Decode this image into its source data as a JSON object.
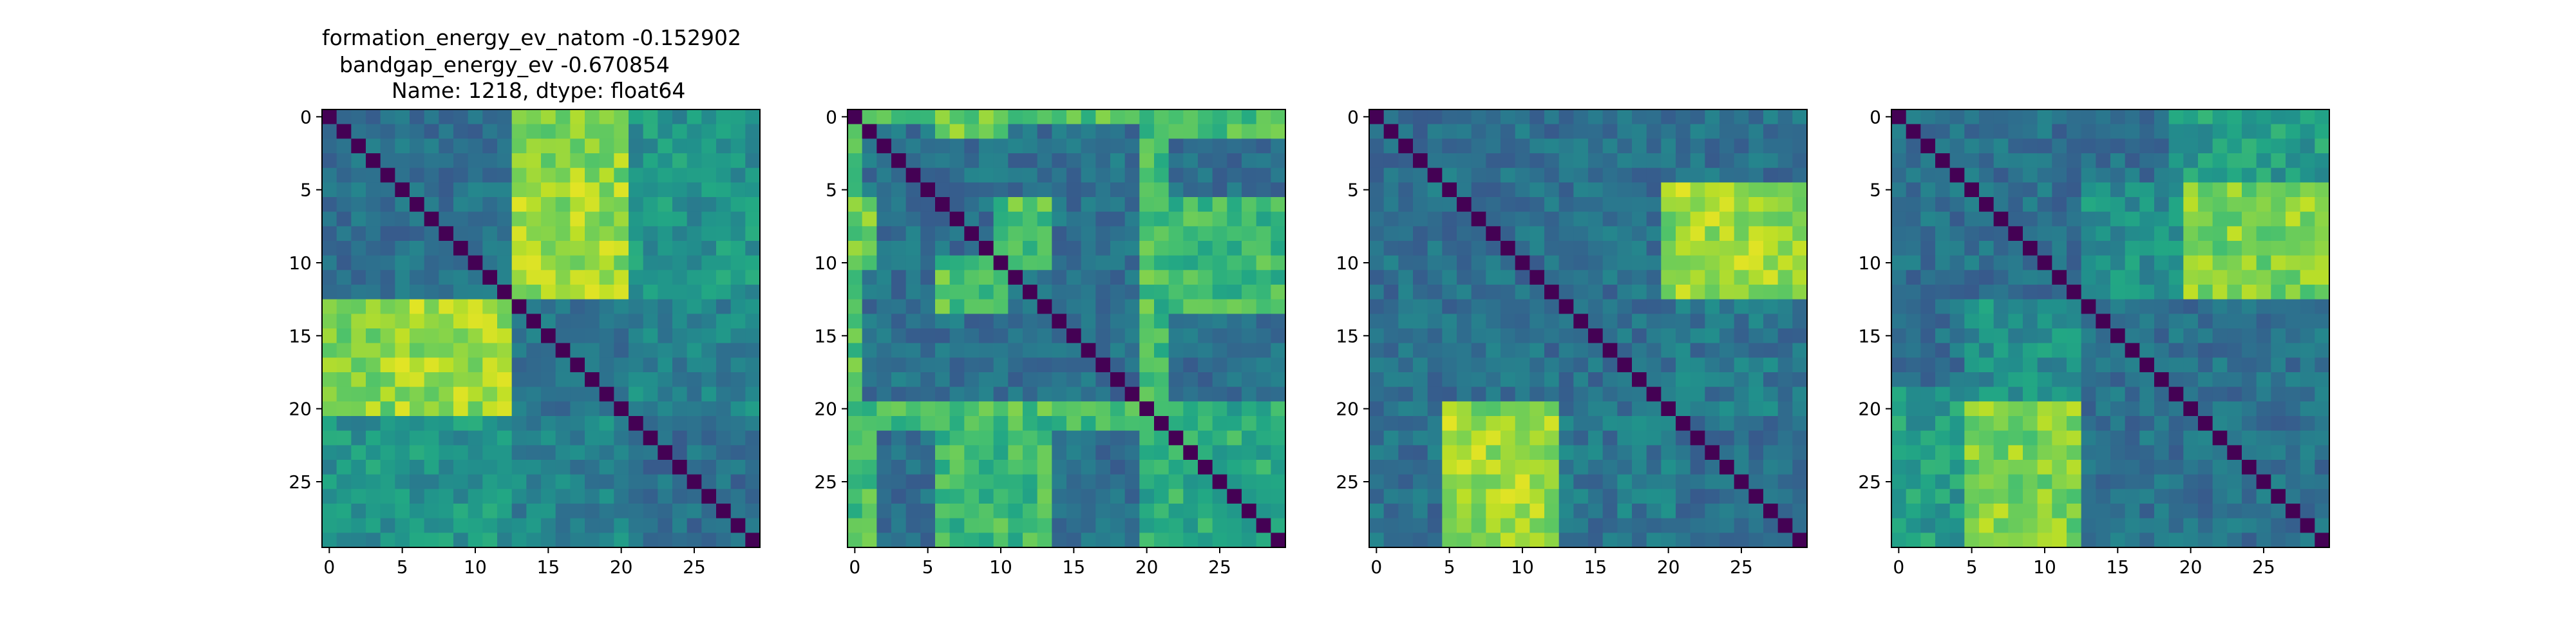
{
  "figure": {
    "title_lines": [
      "formation_energy_ev_natom   -0.152902",
      "bandgap_energy_ev           -0.670854",
      "Name: 1218, dtype: float64"
    ]
  },
  "chart_data": [
    {
      "type": "heatmap",
      "colormap": "viridis",
      "size": 30,
      "x_ticks": [
        0,
        5,
        10,
        15,
        20,
        25
      ],
      "y_ticks": [
        0,
        5,
        10,
        15,
        20,
        25
      ],
      "diagonal_value": 0,
      "blocks": [
        {
          "rows": [
            13,
            20
          ],
          "cols": [
            0,
            12
          ],
          "level": 0.82
        },
        {
          "rows": [
            5,
            12
          ],
          "cols": [
            13,
            20
          ],
          "level": 0.85
        },
        {
          "rows": [
            5,
            12
          ],
          "cols": [
            21,
            29
          ],
          "level": 0.55
        },
        {
          "rows": [
            21,
            29
          ],
          "cols": [
            0,
            12
          ],
          "level": 0.52
        },
        {
          "rows": [
            13,
            20
          ],
          "cols": [
            21,
            29
          ],
          "level": 0.45
        }
      ],
      "seed": 11
    },
    {
      "type": "heatmap",
      "colormap": "viridis",
      "size": 30,
      "x_ticks": [
        0,
        5,
        10,
        15,
        20,
        25
      ],
      "y_ticks": [
        0,
        5,
        10,
        15,
        20,
        25
      ],
      "diagonal_value": 0,
      "blocks": [
        {
          "rows": [
            0,
            0
          ],
          "cols": [
            1,
            29
          ],
          "level": 0.72
        },
        {
          "rows": [
            6,
            10
          ],
          "cols": [
            0,
            1
          ],
          "level": 0.78
        },
        {
          "rows": [
            6,
            10
          ],
          "cols": [
            10,
            13
          ],
          "level": 0.72
        },
        {
          "rows": [
            6,
            10
          ],
          "cols": [
            20,
            28
          ],
          "level": 0.72
        },
        {
          "rows": [
            20,
            21
          ],
          "cols": [
            0,
            28
          ],
          "level": 0.7
        },
        {
          "rows": [
            21,
            29
          ],
          "cols": [
            0,
            1
          ],
          "level": 0.72
        },
        {
          "rows": [
            21,
            29
          ],
          "cols": [
            6,
            13
          ],
          "level": 0.68
        },
        {
          "rows": [
            21,
            29
          ],
          "cols": [
            20,
            28
          ],
          "level": 0.62
        }
      ],
      "seed": 23
    },
    {
      "type": "heatmap",
      "colormap": "viridis",
      "size": 30,
      "x_ticks": [
        0,
        5,
        10,
        15,
        20,
        25
      ],
      "y_ticks": [
        0,
        5,
        10,
        15,
        20,
        25
      ],
      "diagonal_value": 0,
      "blocks": [
        {
          "rows": [
            5,
            12
          ],
          "cols": [
            20,
            29
          ],
          "level": 0.82
        },
        {
          "rows": [
            21,
            29
          ],
          "cols": [
            5,
            12
          ],
          "level": 0.85
        },
        {
          "rows": [
            21,
            29
          ],
          "cols": [
            13,
            19
          ],
          "level": 0.45
        },
        {
          "rows": [
            13,
            20
          ],
          "cols": [
            20,
            29
          ],
          "level": 0.4
        }
      ],
      "seed": 37
    },
    {
      "type": "heatmap",
      "colormap": "viridis",
      "size": 30,
      "x_ticks": [
        0,
        5,
        10,
        15,
        20,
        25
      ],
      "y_ticks": [
        0,
        5,
        10,
        15,
        20,
        25
      ],
      "diagonal_value": 0,
      "blocks": [
        {
          "rows": [
            5,
            12
          ],
          "cols": [
            20,
            29
          ],
          "level": 0.8
        },
        {
          "rows": [
            19,
            29
          ],
          "cols": [
            5,
            12
          ],
          "level": 0.8
        },
        {
          "rows": [
            19,
            29
          ],
          "cols": [
            0,
            4
          ],
          "level": 0.55
        },
        {
          "rows": [
            5,
            12
          ],
          "cols": [
            13,
            19
          ],
          "level": 0.5
        }
      ],
      "seed": 51
    }
  ]
}
